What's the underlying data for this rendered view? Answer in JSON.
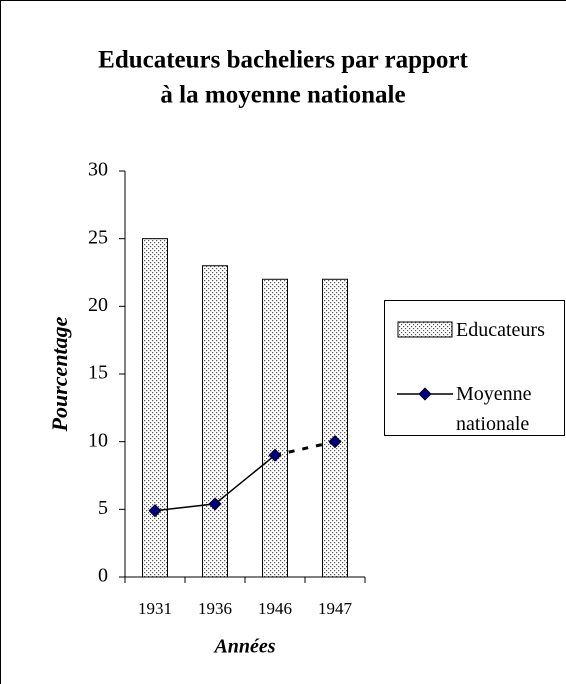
{
  "chart_data": {
    "type": "bar_line",
    "title": [
      "Educateurs bacheliers par rapport",
      "à la moyenne nationale"
    ],
    "x_label": "Années",
    "y_label": "Pourcentage",
    "categories": [
      "1931",
      "1936",
      "1946",
      "1947"
    ],
    "series": [
      {
        "name": "Educateurs",
        "type": "bar",
        "color": "#ffffff",
        "pattern": "dots",
        "values": [
          25,
          23,
          22,
          22
        ]
      },
      {
        "name": "Moyenne nationale",
        "type": "line",
        "color": "#000000",
        "marker_color": "#000080",
        "values": [
          4.9,
          5.4,
          9,
          10
        ],
        "segment_styles": [
          "solid",
          "solid",
          "dashed"
        ]
      }
    ],
    "ylim": [
      0,
      30
    ],
    "yticks": [
      0,
      5,
      10,
      15,
      20,
      25,
      30
    ],
    "grid": false,
    "legend": "right"
  }
}
